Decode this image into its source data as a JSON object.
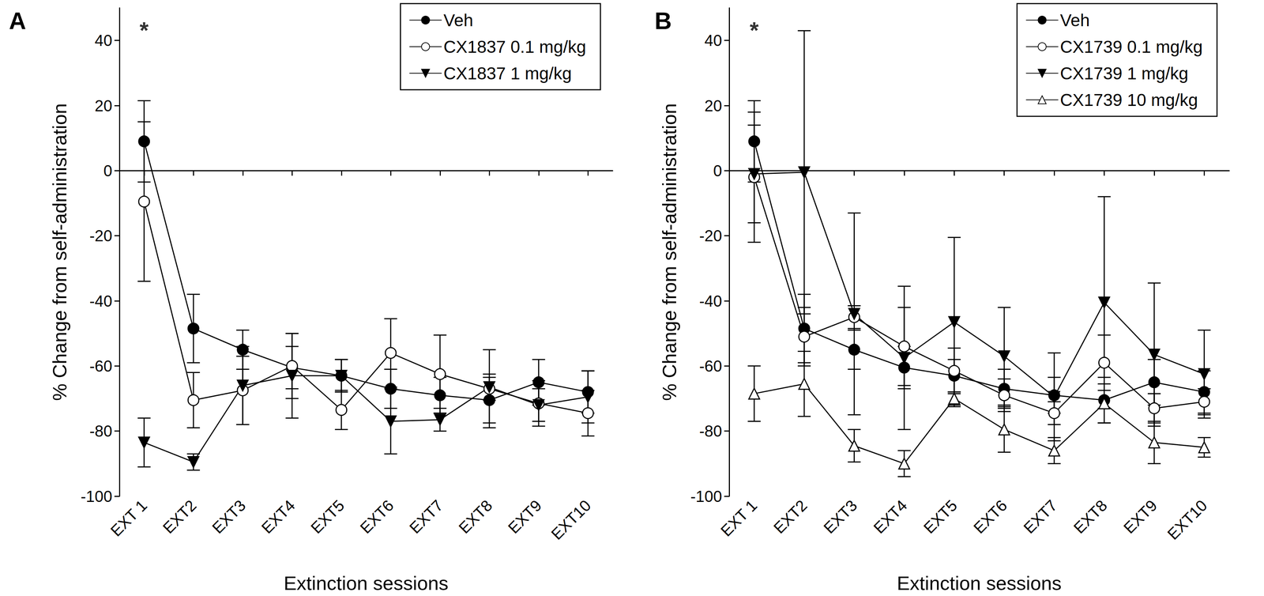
{
  "chart_data": [
    {
      "type": "line",
      "title": "A",
      "x_label": "Extinction sessions",
      "y_label": "% Change from self-administration",
      "categories": [
        "EXT 1",
        "EXT2",
        "EXT3",
        "EXT4",
        "EXT5",
        "EXT6",
        "EXT7",
        "EXT8",
        "EXT9",
        "EXT10"
      ],
      "ylim": [
        -100,
        50
      ],
      "yticks": [
        -100,
        -80,
        -60,
        -40,
        -20,
        0,
        20,
        40
      ],
      "grid": false,
      "legend": "upper right",
      "annotations": [
        {
          "text": "*",
          "x": "EXT 1",
          "y": 43
        }
      ],
      "series": [
        {
          "name": "Veh",
          "color": "#000000",
          "marker": "circle",
          "values": [
            9,
            -48.5,
            -55,
            -60.5,
            -63,
            -67,
            -69,
            -70.5,
            -65,
            -68
          ],
          "errors": [
            12.5,
            10.5,
            6,
            6.5,
            5,
            6,
            5.5,
            7,
            7,
            6.5
          ]
        },
        {
          "name": "CX1837 0.1 mg/kg",
          "color": "#000000",
          "marker": "open-circle",
          "values": [
            -9.5,
            -70.5,
            -67.5,
            -60,
            -73.5,
            -56,
            -62.5,
            -67,
            -71.5,
            -74.5
          ],
          "errors": [
            24.5,
            8.5,
            10.5,
            10,
            6,
            10.5,
            12,
            12,
            7,
            7
          ]
        },
        {
          "name": "CX1837 1 mg/kg",
          "color": "#000000",
          "marker": "triangle-down",
          "values": [
            -83.5,
            -89.5,
            -66,
            -63,
            -63,
            -77,
            -76.5,
            -66.5,
            -72,
            -69.5
          ],
          "errors": [
            7.5,
            2.5,
            12,
            13,
            5,
            10,
            3.5,
            4,
            5,
            8
          ]
        }
      ]
    },
    {
      "type": "line",
      "title": "B",
      "x_label": "Extinction sessions",
      "y_label": "% Change from self-administration",
      "categories": [
        "EXT 1",
        "EXT2",
        "EXT3",
        "EXT4",
        "EXT5",
        "EXT6",
        "EXT7",
        "EXT8",
        "EXT9",
        "EXT10"
      ],
      "ylim": [
        -100,
        50
      ],
      "yticks": [
        -100,
        -80,
        -60,
        -40,
        -20,
        0,
        20,
        40
      ],
      "grid": false,
      "legend": "upper right",
      "annotations": [
        {
          "text": "*",
          "x": "EXT 1",
          "y": 43
        }
      ],
      "series": [
        {
          "name": "Veh",
          "color": "#000000",
          "marker": "circle",
          "values": [
            9,
            -48.5,
            -55,
            -60.5,
            -63,
            -67,
            -69,
            -70.5,
            -65,
            -68
          ],
          "errors": [
            12.5,
            10.5,
            6,
            6.5,
            5,
            6,
            5.5,
            7,
            7,
            6.5
          ]
        },
        {
          "name": "CX1739 0.1 mg/kg",
          "color": "#000000",
          "marker": "open-circle",
          "values": [
            -2,
            -51,
            -45,
            -54,
            -61.5,
            -69,
            -74.5,
            -59,
            -73,
            -71
          ],
          "errors": [
            20,
            9,
            3.5,
            12,
            7,
            5,
            3.5,
            8.5,
            4.5,
            4
          ]
        },
        {
          "name": "CX1739 1 mg/kg",
          "color": "#000000",
          "marker": "triangle-down",
          "values": [
            -1,
            -0.5,
            -44,
            -57.5,
            -46.5,
            -57,
            -69.5,
            -40.5,
            -56.5,
            -62.5
          ],
          "errors": [
            15,
            43.5,
            31,
            22,
            26,
            15,
            13.5,
            32.5,
            22,
            13.5
          ]
        },
        {
          "name": "CX1739 10 mg/kg",
          "color": "#000000",
          "marker": "open-triangle",
          "values": [
            -68.5,
            -65.5,
            -84.5,
            -90,
            -70,
            -79.5,
            -86,
            -71.5,
            -83.5,
            -85
          ],
          "errors": [
            8.5,
            10,
            5,
            4,
            2,
            7,
            4,
            6,
            6.5,
            3
          ]
        }
      ]
    }
  ]
}
